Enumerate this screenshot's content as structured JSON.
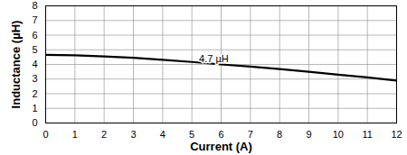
{
  "chart_data": {
    "type": "line",
    "x_label": "Current (A)",
    "y_label": "Inductance (µH)",
    "x": [
      0,
      1,
      2,
      3,
      4,
      5,
      6,
      7,
      8,
      9,
      10,
      11,
      12
    ],
    "series": [
      {
        "name": "4.7 µH",
        "color": "#000000",
        "values": [
          4.65,
          4.62,
          4.55,
          4.45,
          4.32,
          4.17,
          4.0,
          3.85,
          3.68,
          3.5,
          3.3,
          3.12,
          2.9
        ]
      }
    ],
    "annotations": [
      {
        "text": "4.7 µH",
        "x": 5.75,
        "y": 4.4
      }
    ],
    "xlim": [
      0,
      12
    ],
    "xticks": [
      0,
      1,
      2,
      3,
      4,
      5,
      6,
      7,
      8,
      9,
      10,
      11,
      12
    ],
    "ylim": [
      0,
      8
    ],
    "yticks": [
      0,
      1,
      2,
      3,
      4,
      5,
      6,
      7,
      8
    ],
    "grid": true
  }
}
